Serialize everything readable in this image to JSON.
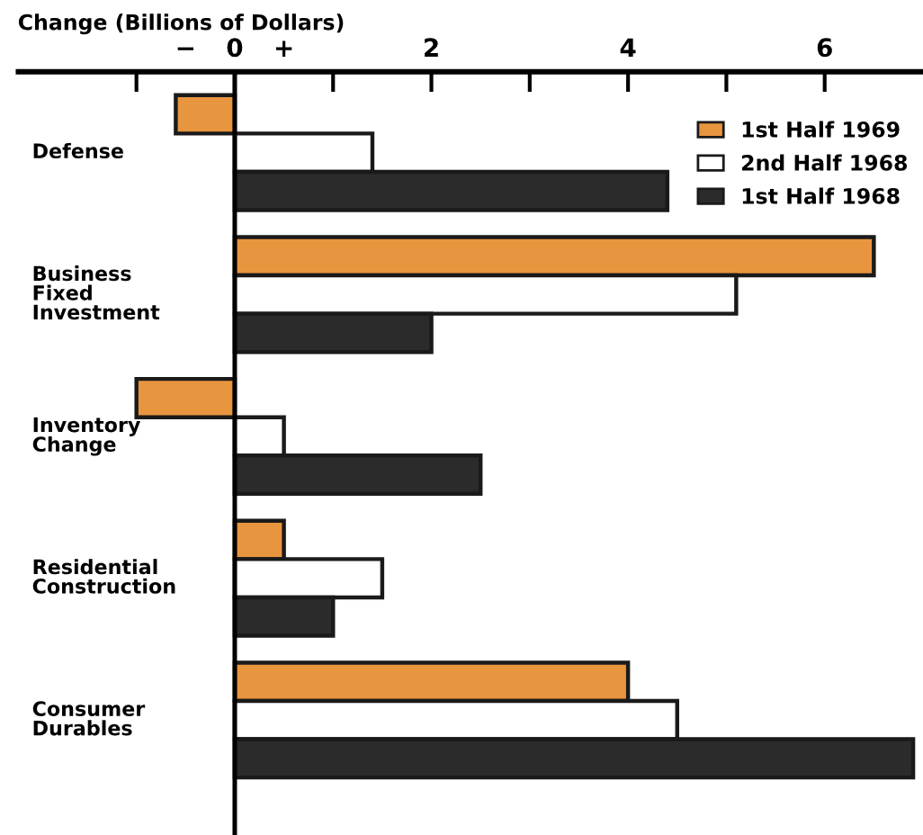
{
  "chart_data": {
    "type": "bar",
    "orientation": "horizontal",
    "xlabel": "Change (Billions of Dollars)",
    "categories": [
      "Defense",
      "Business\nFixed\nInvestment",
      "Inventory\nChange",
      "Residential\nConstruction",
      "Consumer\nDurables"
    ],
    "series": [
      {
        "name": "1st Half 1969",
        "color": "#e8953f",
        "values": [
          -0.6,
          6.5,
          -1.0,
          0.5,
          4.0
        ]
      },
      {
        "name": "2nd Half 1968",
        "color": "#ffffff",
        "values": [
          1.4,
          5.1,
          0.5,
          1.5,
          4.5
        ]
      },
      {
        "name": "1st Half 1968",
        "color": "#2b2b2b",
        "values": [
          4.4,
          2.0,
          2.5,
          1.0,
          6.9
        ]
      }
    ],
    "xlim": [
      -2.2,
      7.0
    ],
    "xticks": [
      {
        "value": -1,
        "label": null
      },
      {
        "value": -0.5,
        "label": "−"
      },
      0,
      {
        "value": 0.5,
        "label": "+"
      },
      {
        "value": 1,
        "label": null
      },
      2,
      {
        "value": 3,
        "label": null
      },
      4,
      {
        "value": 5,
        "label": null
      },
      6
    ],
    "legend": "top right"
  }
}
